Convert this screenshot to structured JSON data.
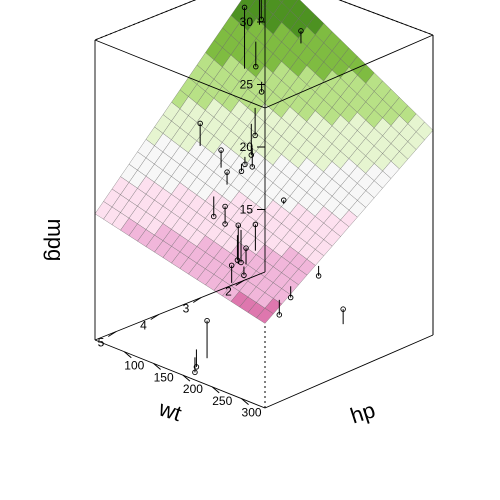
{
  "chart_data": {
    "type": "surface3d",
    "xlabel": "wt",
    "ylabel": "hp",
    "zlabel": "mpg",
    "xlim": [
      1.5,
      5.5
    ],
    "ylim": [
      50,
      340
    ],
    "zlim": [
      10,
      34
    ],
    "x_ticks": [
      {
        "value": 2,
        "label": "2"
      },
      {
        "value": 3,
        "label": "3"
      },
      {
        "value": 4,
        "label": "4"
      },
      {
        "value": 5,
        "label": "5"
      }
    ],
    "y_ticks": [
      {
        "value": 100,
        "label": "100"
      },
      {
        "value": 150,
        "label": "150"
      },
      {
        "value": 200,
        "label": "200"
      },
      {
        "value": 250,
        "label": "250"
      },
      {
        "value": 300,
        "label": "300"
      }
    ],
    "z_ticks": [
      {
        "value": 15,
        "label": "15"
      },
      {
        "value": 20,
        "label": "20"
      },
      {
        "value": 25,
        "label": "25"
      },
      {
        "value": 30,
        "label": "30"
      }
    ],
    "surface_grid": {
      "nx": 20,
      "ny": 20
    },
    "surface_model": "mpg ≈ fitted smooth surface of wt and hp",
    "color_scale": [
      "#8e0152",
      "#c51b7d",
      "#de77ae",
      "#f1b6da",
      "#fde0ef",
      "#f7f7f7",
      "#e6f5d0",
      "#b8e186",
      "#7fbc41",
      "#4d9221"
    ],
    "points": [
      {
        "wt": 2.62,
        "hp": 110,
        "mpg": 21.0,
        "fit": 22.5
      },
      {
        "wt": 2.875,
        "hp": 110,
        "mpg": 21.0,
        "fit": 21.6
      },
      {
        "wt": 2.32,
        "hp": 93,
        "mpg": 22.8,
        "fit": 25.0
      },
      {
        "wt": 3.215,
        "hp": 110,
        "mpg": 21.4,
        "fit": 20.4
      },
      {
        "wt": 3.44,
        "hp": 175,
        "mpg": 18.7,
        "fit": 16.6
      },
      {
        "wt": 3.46,
        "hp": 105,
        "mpg": 18.1,
        "fit": 19.7
      },
      {
        "wt": 3.57,
        "hp": 245,
        "mpg": 14.3,
        "fit": 15.2
      },
      {
        "wt": 3.19,
        "hp": 62,
        "mpg": 24.4,
        "fit": 22.6
      },
      {
        "wt": 3.15,
        "hp": 95,
        "mpg": 22.8,
        "fit": 21.4
      },
      {
        "wt": 3.44,
        "hp": 123,
        "mpg": 19.2,
        "fit": 18.9
      },
      {
        "wt": 3.44,
        "hp": 123,
        "mpg": 17.8,
        "fit": 18.9
      },
      {
        "wt": 4.07,
        "hp": 180,
        "mpg": 16.4,
        "fit": 15.0
      },
      {
        "wt": 3.73,
        "hp": 180,
        "mpg": 17.3,
        "fit": 16.0
      },
      {
        "wt": 3.78,
        "hp": 180,
        "mpg": 15.2,
        "fit": 15.9
      },
      {
        "wt": 5.25,
        "hp": 205,
        "mpg": 10.4,
        "fit": 11.8
      },
      {
        "wt": 5.424,
        "hp": 215,
        "mpg": 10.4,
        "fit": 11.6
      },
      {
        "wt": 5.345,
        "hp": 230,
        "mpg": 14.7,
        "fit": 11.7
      },
      {
        "wt": 2.2,
        "hp": 66,
        "mpg": 32.4,
        "fit": 27.5
      },
      {
        "wt": 1.615,
        "hp": 52,
        "mpg": 30.4,
        "fit": 33.0
      },
      {
        "wt": 1.835,
        "hp": 65,
        "mpg": 33.9,
        "fit": 30.5
      },
      {
        "wt": 2.465,
        "hp": 97,
        "mpg": 21.5,
        "fit": 24.0
      },
      {
        "wt": 3.52,
        "hp": 150,
        "mpg": 15.5,
        "fit": 17.5
      },
      {
        "wt": 3.435,
        "hp": 150,
        "mpg": 15.2,
        "fit": 17.8
      },
      {
        "wt": 3.84,
        "hp": 245,
        "mpg": 13.3,
        "fit": 14.5
      },
      {
        "wt": 3.845,
        "hp": 175,
        "mpg": 19.2,
        "fit": 16.1
      },
      {
        "wt": 1.935,
        "hp": 66,
        "mpg": 27.3,
        "fit": 29.3
      },
      {
        "wt": 2.14,
        "hp": 91,
        "mpg": 26.0,
        "fit": 26.8
      },
      {
        "wt": 1.513,
        "hp": 113,
        "mpg": 30.4,
        "fit": 29.4
      },
      {
        "wt": 3.17,
        "hp": 264,
        "mpg": 15.8,
        "fit": 16.6
      },
      {
        "wt": 2.77,
        "hp": 175,
        "mpg": 19.7,
        "fit": 19.4
      },
      {
        "wt": 3.57,
        "hp": 335,
        "mpg": 15.0,
        "fit": 13.8
      },
      {
        "wt": 2.78,
        "hp": 109,
        "mpg": 21.4,
        "fit": 22.0
      }
    ]
  }
}
